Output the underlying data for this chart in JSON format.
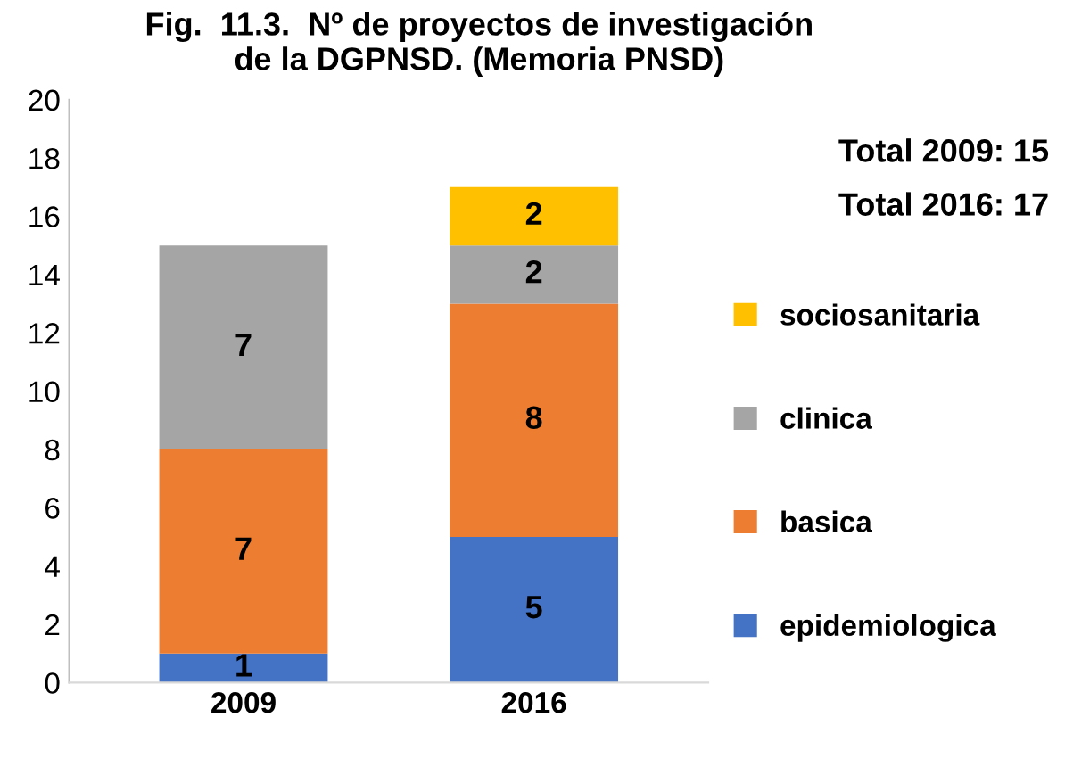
{
  "chart_data": {
    "type": "bar",
    "stacked": true,
    "title": "Fig.  11.3.  Nº de proyectos de investigación\nde la DGPNSD. (Memoria PNSD)",
    "categories": [
      "2009",
      "2016"
    ],
    "series": [
      {
        "name": "epidemiologica",
        "color": "#4472c4",
        "values": [
          1,
          5
        ]
      },
      {
        "name": "basica",
        "color": "#ed7d31",
        "values": [
          7,
          8
        ]
      },
      {
        "name": "clinica",
        "color": "#a5a5a5",
        "values": [
          7,
          2
        ]
      },
      {
        "name": "sociosanitaria",
        "color": "#ffc000",
        "values": [
          null,
          2
        ]
      }
    ],
    "ylim": [
      0,
      20
    ],
    "yticks": [
      0,
      2,
      4,
      6,
      8,
      10,
      12,
      14,
      16,
      18,
      20
    ],
    "annotations": [
      "Total 2009: 15",
      "Total 2016: 17"
    ],
    "data_labels": true,
    "legend": "right",
    "grid": false
  }
}
